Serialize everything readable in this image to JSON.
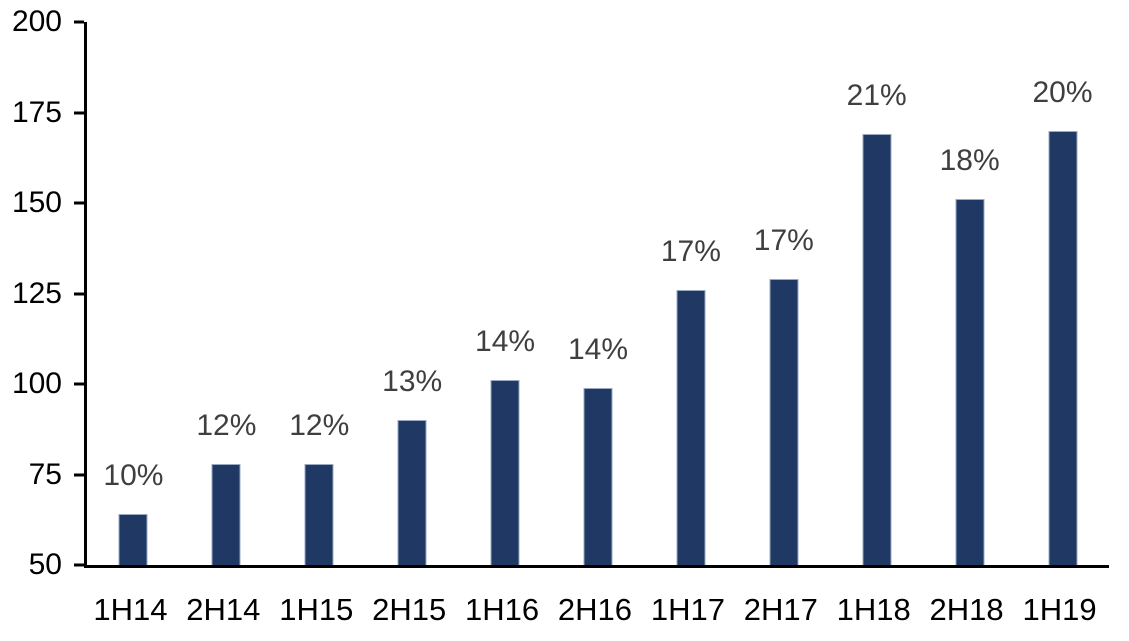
{
  "chart_data": {
    "type": "bar",
    "title": "",
    "xlabel": "",
    "ylabel": "",
    "categories": [
      "1H14",
      "2H14",
      "1H15",
      "2H15",
      "1H16",
      "2H16",
      "1H17",
      "2H17",
      "1H18",
      "2H18",
      "1H19"
    ],
    "values": [
      64,
      78,
      78,
      90,
      101,
      99,
      126,
      129,
      169,
      151,
      170
    ],
    "bar_labels": [
      "10%",
      "12%",
      "12%",
      "13%",
      "14%",
      "14%",
      "17%",
      "17%",
      "21%",
      "18%",
      "20%"
    ],
    "ylim": [
      50,
      200
    ],
    "yticks": [
      50,
      75,
      100,
      125,
      150,
      175,
      200
    ],
    "grid": false,
    "legend_position": "none",
    "colors": {
      "bar_fill": "#1F3864",
      "bar_border": "#9AA9C2",
      "axis": "#000000",
      "value_label": "#3F3F3F",
      "tick_label": "#000000",
      "background": "#FFFFFF"
    }
  }
}
